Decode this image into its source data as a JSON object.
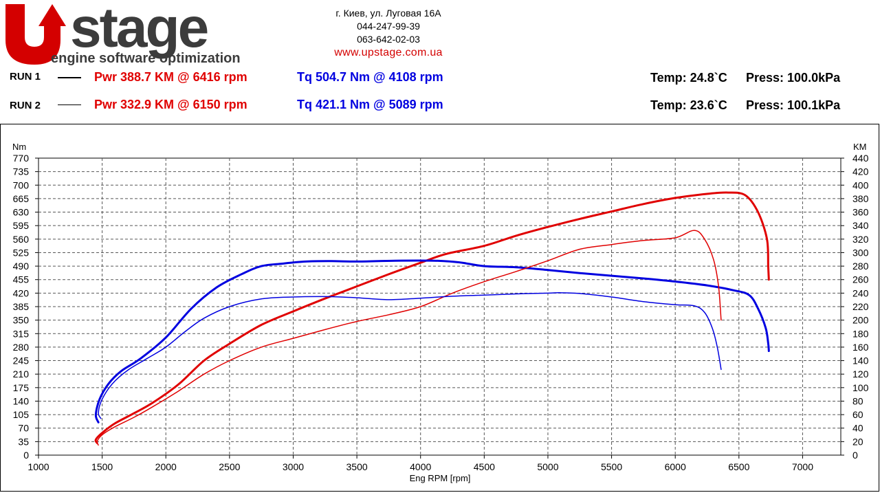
{
  "brand": {
    "logo_text": "Upstage",
    "tagline": "engine software optimization"
  },
  "contact": {
    "address": "г. Киев, ул. Луговая 16А",
    "phone1": "044-247-99-39",
    "phone2": "063-642-02-03",
    "website": "www.upstage.com.ua"
  },
  "runs": [
    {
      "label": "RUN 1",
      "pwr": "Pwr  388.7 KM @ 6416 rpm",
      "tq": "Tq 504.7 Nm @ 4108 rpm",
      "temp": "Temp: 24.8`C",
      "press": "Press: 100.0kPa"
    },
    {
      "label": "RUN 2",
      "pwr": "Pwr  332.9 KM @ 6150 rpm",
      "tq": "Tq 421.1 Nm @ 5089 rpm",
      "temp": "Temp: 23.6`C",
      "press": "Press: 100.1kPa"
    }
  ],
  "colors": {
    "power": "#e00000",
    "torque": "#0000e0",
    "grid": "#555555"
  },
  "chart_data": {
    "type": "line",
    "xlabel": "Eng RPM [rpm]",
    "ylabel_left": "Nm",
    "ylabel_right": "KM",
    "xlim": [
      1000,
      7300
    ],
    "ylim_left": [
      0,
      770
    ],
    "ylim_right": [
      0,
      440
    ],
    "x_ticks": [
      "1000",
      "1500",
      "2000",
      "2500",
      "3000",
      "3500",
      "4000",
      "4500",
      "5000",
      "5500",
      "6000",
      "6500",
      "7000"
    ],
    "y_ticks_left": [
      "0",
      "35",
      "70",
      "105",
      "140",
      "175",
      "210",
      "245",
      "280",
      "315",
      "350",
      "385",
      "420",
      "455",
      "490",
      "525",
      "560",
      "595",
      "630",
      "665",
      "700",
      "735",
      "770"
    ],
    "y_ticks_right": [
      "0",
      "20",
      "40",
      "60",
      "80",
      "100",
      "120",
      "140",
      "160",
      "180",
      "200",
      "220",
      "240",
      "260",
      "280",
      "300",
      "320",
      "340",
      "360",
      "380",
      "400",
      "420",
      "440"
    ],
    "grid": true,
    "series": [
      {
        "name": "Pwr",
        "run": "RUN 1",
        "axis": "right",
        "color": "#e00000",
        "width": 3,
        "x": [
          1460,
          1450,
          1500,
          1600,
          1750,
          1900,
          2100,
          2300,
          2500,
          2750,
          3000,
          3250,
          3500,
          3750,
          4000,
          4200,
          4500,
          4750,
          5000,
          5250,
          5500,
          5750,
          6000,
          6250,
          6416,
          6550,
          6650,
          6720,
          6730,
          6735
        ],
        "y": [
          18,
          23,
          33,
          47,
          62,
          78,
          105,
          140,
          165,
          193,
          213,
          232,
          250,
          268,
          285,
          298,
          310,
          325,
          338,
          350,
          361,
          372,
          381,
          387,
          389,
          385,
          360,
          320,
          280,
          260
        ]
      },
      {
        "name": "Tq",
        "run": "RUN 1",
        "axis": "left",
        "color": "#0000e0",
        "width": 3,
        "x": [
          1470,
          1450,
          1480,
          1550,
          1650,
          1800,
          2000,
          2200,
          2400,
          2600,
          2750,
          2900,
          3100,
          3300,
          3500,
          3800,
          4108,
          4300,
          4500,
          4750,
          5000,
          5250,
          5500,
          5750,
          6000,
          6250,
          6450,
          6580,
          6650,
          6710,
          6730,
          6735
        ],
        "y": [
          85,
          105,
          145,
          185,
          218,
          250,
          305,
          380,
          435,
          470,
          490,
          496,
          502,
          503,
          502,
          504,
          504,
          500,
          490,
          487,
          480,
          472,
          465,
          458,
          450,
          440,
          428,
          415,
          380,
          330,
          290,
          270
        ]
      },
      {
        "name": "Pwr",
        "run": "RUN 2",
        "axis": "right",
        "color": "#e00000",
        "width": 1.5,
        "x": [
          1470,
          1460,
          1500,
          1600,
          1750,
          1900,
          2100,
          2300,
          2500,
          2750,
          3000,
          3250,
          3500,
          3750,
          4000,
          4250,
          4500,
          4750,
          5000,
          5250,
          5500,
          5750,
          6000,
          6150,
          6230,
          6300,
          6340,
          6360
        ],
        "y": [
          15,
          20,
          30,
          42,
          56,
          72,
          95,
          120,
          140,
          160,
          173,
          186,
          198,
          208,
          220,
          240,
          257,
          272,
          288,
          305,
          312,
          318,
          322,
          333,
          320,
          290,
          250,
          200
        ]
      },
      {
        "name": "Tq",
        "run": "RUN 2",
        "axis": "left",
        "color": "#0000e0",
        "width": 1.5,
        "x": [
          1490,
          1470,
          1500,
          1580,
          1700,
          1850,
          2000,
          2150,
          2300,
          2500,
          2750,
          3000,
          3250,
          3500,
          3750,
          4000,
          4250,
          4500,
          4750,
          5000,
          5089,
          5250,
          5500,
          5750,
          6000,
          6150,
          6230,
          6290,
          6330,
          6360
        ],
        "y": [
          95,
          110,
          145,
          185,
          220,
          250,
          280,
          320,
          355,
          385,
          405,
          410,
          411,
          408,
          403,
          407,
          412,
          415,
          418,
          420,
          421,
          419,
          410,
          398,
          390,
          387,
          370,
          330,
          280,
          222
        ]
      }
    ]
  }
}
